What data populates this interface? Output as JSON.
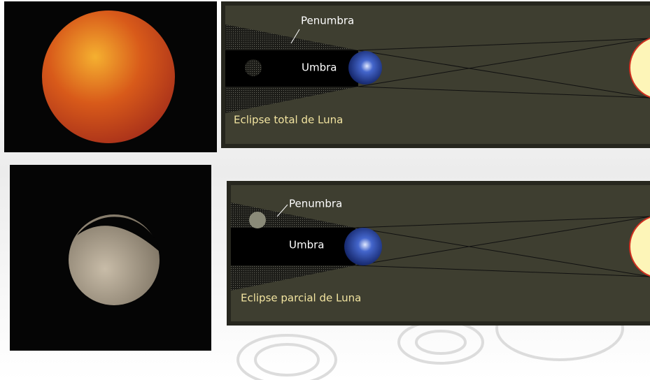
{
  "diagrams": [
    {
      "penumbra_label": "Penumbra",
      "umbra_label": "Umbra",
      "caption": "Eclipse total de Luna"
    },
    {
      "penumbra_label": "Penumbra",
      "umbra_label": "Umbra",
      "caption": "Eclipse parcial de Luna"
    }
  ]
}
